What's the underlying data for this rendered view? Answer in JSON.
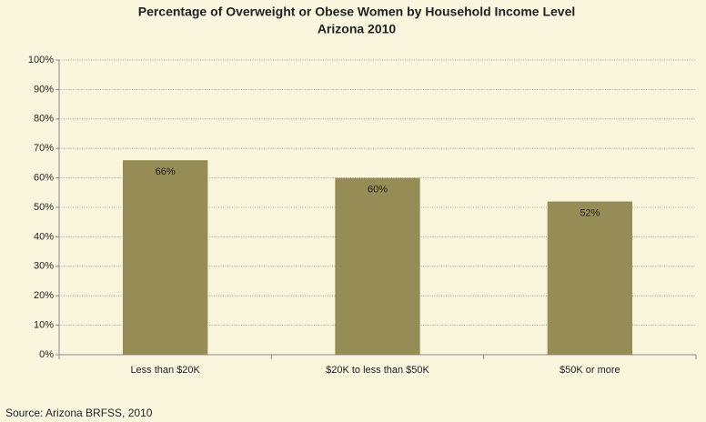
{
  "chart_data": {
    "type": "bar",
    "title": "Percentage of Overweight or Obese Women by Household Income Level",
    "subtitle": "Arizona 2010",
    "categories": [
      "Less than $20K",
      "$20K to less than $50K",
      "$50K or more"
    ],
    "values": [
      66,
      60,
      52
    ],
    "value_labels": [
      "66%",
      "60%",
      "52%"
    ],
    "color": "#968c56",
    "ylim": [
      0,
      100
    ],
    "yticks": [
      {
        "value": 0,
        "label": "0%"
      },
      {
        "value": 10,
        "label": "10%"
      },
      {
        "value": 20,
        "label": "20%"
      },
      {
        "value": 30,
        "label": "30%"
      },
      {
        "value": 40,
        "label": "40%"
      },
      {
        "value": 50,
        "label": "50%"
      },
      {
        "value": 60,
        "label": "60%"
      },
      {
        "value": 70,
        "label": "70%"
      },
      {
        "value": 80,
        "label": "80%"
      },
      {
        "value": 90,
        "label": "90%"
      },
      {
        "value": 100,
        "label": "100%"
      }
    ],
    "grid": true,
    "annotations": [
      "Source: Arizona BRFSS, 2010"
    ]
  }
}
